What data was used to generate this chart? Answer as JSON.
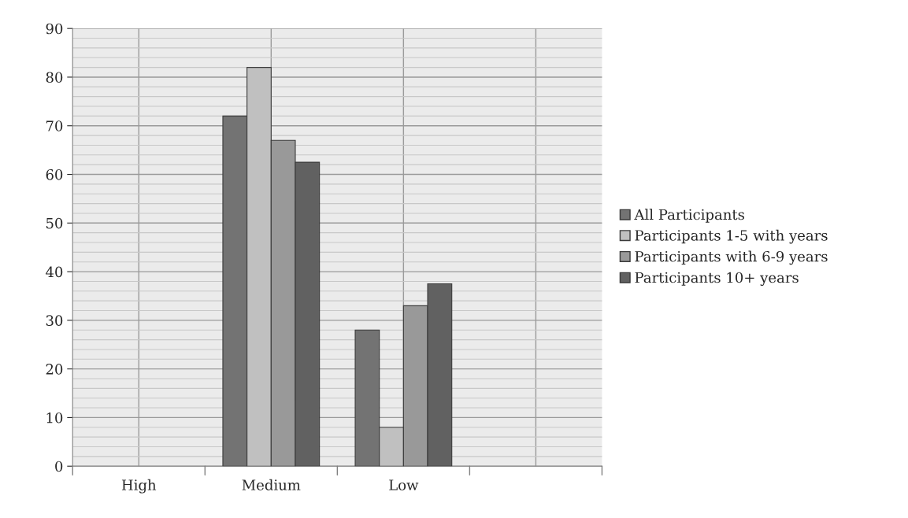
{
  "chart_data": {
    "type": "bar",
    "categories": [
      "High",
      "Medium",
      "Low",
      null
    ],
    "series": [
      {
        "name": "All Participants",
        "color": "#737373",
        "values": [
          null,
          72,
          28,
          null
        ]
      },
      {
        "name": "Participants 1-5 with years",
        "color": "#c0c0c0",
        "values": [
          null,
          82,
          8,
          null
        ]
      },
      {
        "name": "Participants with 6-9 years",
        "color": "#999999",
        "values": [
          null,
          67,
          33,
          null
        ]
      },
      {
        "name": "Participants 10+ years",
        "color": "#616161",
        "values": [
          null,
          62.5,
          37.5,
          null
        ]
      }
    ],
    "ylim": [
      0,
      90
    ],
    "yticks": [
      0,
      10,
      20,
      30,
      40,
      50,
      60,
      70,
      80,
      90
    ],
    "grid": true,
    "legend": "right"
  }
}
